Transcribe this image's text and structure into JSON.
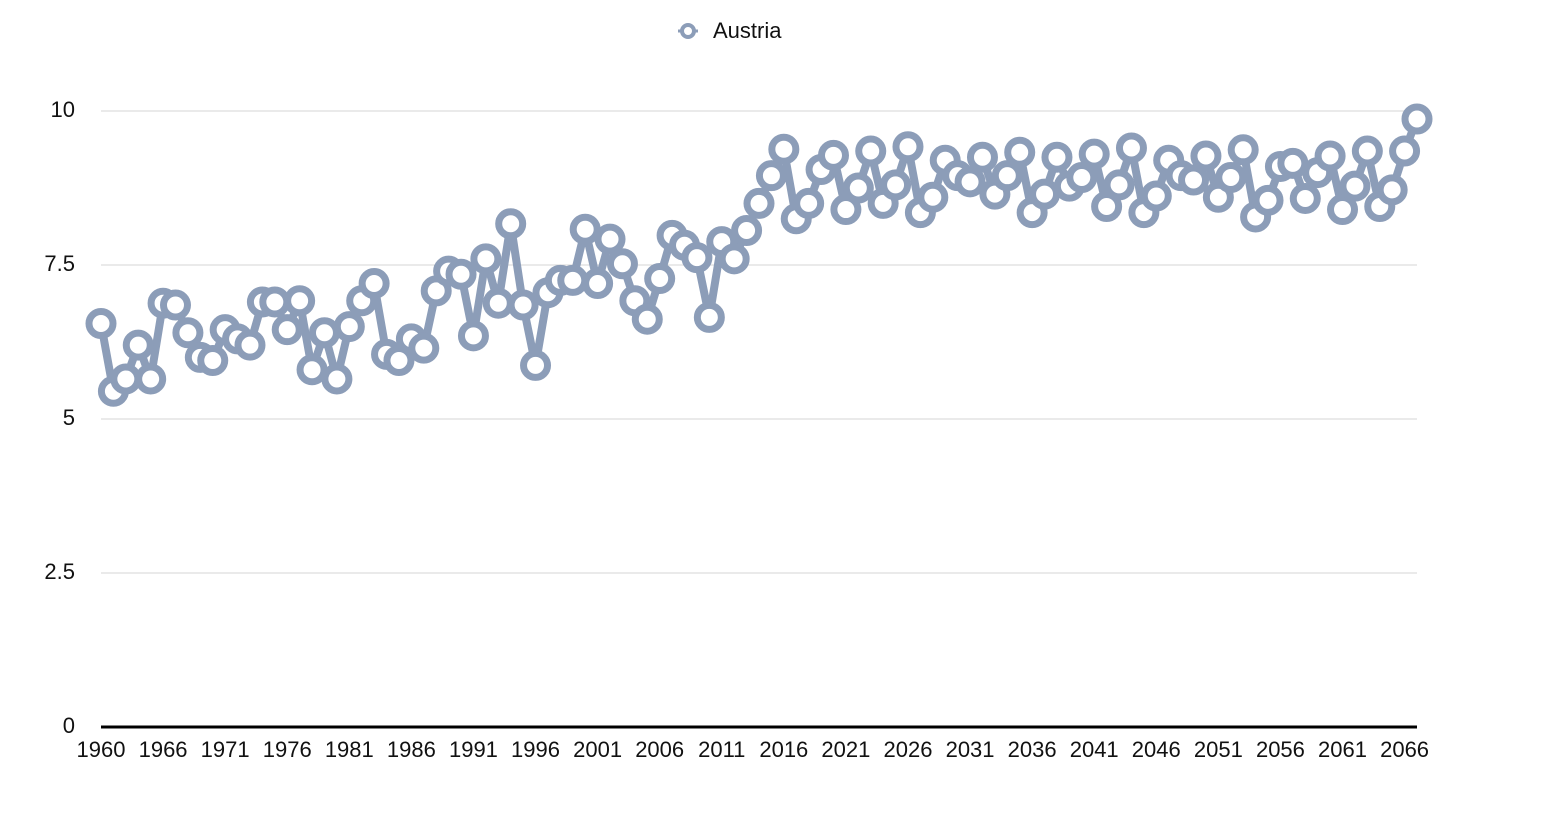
{
  "chart_data": {
    "type": "line",
    "categories": [
      "1960",
      null,
      null,
      null,
      null,
      "1966",
      null,
      null,
      null,
      null,
      "1971",
      null,
      null,
      null,
      null,
      "1976",
      null,
      null,
      null,
      null,
      "1981",
      null,
      null,
      null,
      null,
      "1986",
      null,
      null,
      null,
      null,
      "1991",
      null,
      null,
      null,
      null,
      "1996",
      null,
      null,
      null,
      null,
      "2001",
      null,
      null,
      null,
      null,
      "2006",
      null,
      null,
      null,
      null,
      "2011",
      null,
      null,
      null,
      null,
      "2016",
      null,
      null,
      null,
      null,
      "2021",
      null,
      null,
      null,
      null,
      "2026",
      null,
      null,
      null,
      null,
      "2031",
      null,
      null,
      null,
      null,
      "2036",
      null,
      null,
      null,
      null,
      "2041",
      null,
      null,
      null,
      null,
      "2046",
      null,
      null,
      null,
      null,
      "2051",
      null,
      null,
      null,
      null,
      "2056",
      null,
      null,
      null,
      null,
      "2061",
      null,
      null,
      null,
      null,
      "2066",
      null
    ],
    "series": [
      {
        "name": "Austria",
        "color": "#8c9db8",
        "values": [
          6.55,
          5.45,
          5.65,
          6.2,
          5.65,
          6.88,
          6.85,
          6.4,
          6.0,
          5.95,
          6.45,
          6.3,
          6.2,
          6.9,
          6.9,
          6.45,
          6.92,
          5.8,
          6.4,
          5.65,
          6.5,
          6.92,
          7.2,
          6.05,
          5.95,
          6.3,
          6.15,
          7.08,
          7.4,
          7.35,
          6.35,
          7.6,
          6.88,
          8.17,
          6.85,
          5.87,
          7.05,
          7.25,
          7.25,
          8.08,
          7.2,
          7.92,
          7.52,
          6.92,
          6.62,
          7.28,
          7.98,
          7.82,
          7.62,
          6.65,
          7.88,
          7.6,
          8.06,
          8.5,
          8.95,
          9.38,
          8.25,
          8.5,
          9.05,
          9.28,
          8.4,
          8.75,
          9.35,
          8.5,
          8.8,
          9.42,
          8.35,
          8.6,
          9.2,
          8.95,
          8.85,
          9.25,
          8.65,
          8.95,
          9.33,
          8.35,
          8.65,
          9.25,
          8.78,
          8.92,
          9.3,
          8.45,
          8.8,
          9.4,
          8.35,
          8.62,
          9.2,
          8.95,
          8.88,
          9.27,
          8.6,
          8.92,
          9.37,
          8.28,
          8.55,
          9.1,
          9.15,
          8.58,
          9.0,
          9.27,
          8.4,
          8.78,
          9.35,
          8.45,
          8.72,
          9.35,
          9.87
        ]
      }
    ],
    "ylim": [
      0,
      10
    ],
    "yticks": [
      0,
      2.5,
      5,
      7.5,
      10
    ],
    "grid": true,
    "legend": "top"
  }
}
